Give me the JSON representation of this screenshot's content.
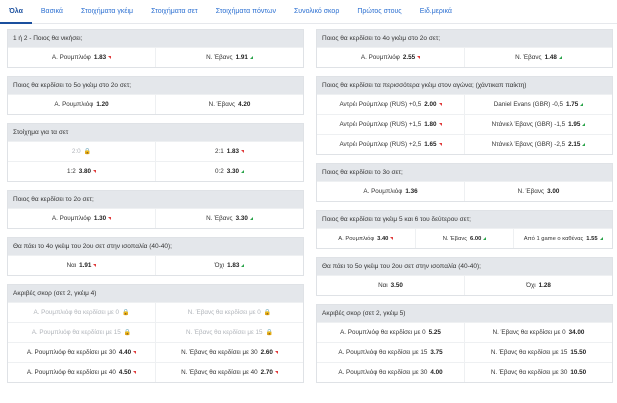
{
  "tabs": [
    "Όλα",
    "Βασικά",
    "Στοιχήματα γκέιμ",
    "Στοιχήματα σετ",
    "Στοιχήματα πόντων",
    "Συνολικό σκορ",
    "Πρώτος στους",
    "Ειδ.μερικά"
  ],
  "left": [
    {
      "title": "1 ή 2 - Ποιος θα νικήσει;",
      "rows": [
        [
          {
            "label": "Α. Ρουμπλιόφ",
            "odd": "1.83",
            "trend": "down"
          },
          {
            "label": "Ν. Έβανς",
            "odd": "1.91",
            "trend": "up"
          }
        ]
      ]
    },
    {
      "title": "Ποιος θα κερδίσει το 5ο γκέιμ στο 2ο σετ;",
      "rows": [
        [
          {
            "label": "Α. Ρουμπλιόφ",
            "odd": "1.20"
          },
          {
            "label": "Ν. Έβανς",
            "odd": "4.20"
          }
        ]
      ]
    },
    {
      "title": "Στοίχημα για τα σετ",
      "rows": [
        [
          {
            "label": "2:0",
            "locked": true
          },
          {
            "label": "2:1",
            "odd": "1.83",
            "trend": "down"
          }
        ],
        [
          {
            "label": "1:2",
            "odd": "3.80",
            "trend": "down"
          },
          {
            "label": "0:2",
            "odd": "3.30",
            "trend": "up"
          }
        ]
      ]
    },
    {
      "title": "Ποιος θα κερδίσει το 2ο σετ;",
      "rows": [
        [
          {
            "label": "Α. Ρουμπλιόφ",
            "odd": "1.30",
            "trend": "down"
          },
          {
            "label": "Ν. Έβανς",
            "odd": "3.30",
            "trend": "up"
          }
        ]
      ]
    },
    {
      "title": "Θα πάει το 4ο γκέιμ του 2ου σετ στην ισοπαλία (40-40);",
      "rows": [
        [
          {
            "label": "Ναι",
            "odd": "1.91",
            "trend": "down"
          },
          {
            "label": "Όχι",
            "odd": "1.83",
            "trend": "up"
          }
        ]
      ]
    },
    {
      "title": "Ακριβές σκορ (σετ 2, γκέιμ 4)",
      "rows": [
        [
          {
            "label": "Α. Ρουμπλιόφ θα κερδίσει με 0",
            "locked": true
          },
          {
            "label": "Ν. Έβανς θα κερδίσει με 0",
            "locked": true
          }
        ],
        [
          {
            "label": "Α. Ρουμπλιόφ θα κερδίσει με 15",
            "locked": true
          },
          {
            "label": "Ν. Έβανς θα κερδίσει με 15",
            "locked": true
          }
        ],
        [
          {
            "label": "Α. Ρουμπλιόφ θα κερδίσει με 30",
            "odd": "4.40",
            "trend": "down"
          },
          {
            "label": "Ν. Έβανς θα κερδίσει με 30",
            "odd": "2.60",
            "trend": "down"
          }
        ],
        [
          {
            "label": "Α. Ρουμπλιόφ θα κερδίσει με 40",
            "odd": "4.50",
            "trend": "down"
          },
          {
            "label": "Ν. Έβανς θα κερδίσει με 40",
            "odd": "2.70",
            "trend": "down"
          }
        ]
      ]
    }
  ],
  "right": [
    {
      "title": "Ποιος θα κερδίσει το 4ο γκέιμ στο 2ο σετ;",
      "rows": [
        [
          {
            "label": "Α. Ρουμπλιόφ",
            "odd": "2.55",
            "trend": "down"
          },
          {
            "label": "Ν. Έβανς",
            "odd": "1.48",
            "trend": "up"
          }
        ]
      ]
    },
    {
      "title": "Ποιος θα κερδίσει τα περισσότερα γκέιμ στον αγώνα; (χάντικαπ παίκτη)",
      "rows": [
        [
          {
            "label": "Αντρέι Ρούμπλεφ (RUS) +0,5",
            "odd": "2.00",
            "trend": "down"
          },
          {
            "label": "Daniel Evans (GBR) -0,5",
            "odd": "1.75",
            "trend": "up"
          }
        ],
        [
          {
            "label": "Αντρέι Ρούμπλεφ (RUS) +1,5",
            "odd": "1.80",
            "trend": "down"
          },
          {
            "label": "Ντάνιελ Έβανς (GBR) -1,5",
            "odd": "1.95",
            "trend": "up"
          }
        ],
        [
          {
            "label": "Αντρέι Ρούμπλεφ (RUS) +2,5",
            "odd": "1.65",
            "trend": "down"
          },
          {
            "label": "Ντάνιελ Έβανς (GBR) -2,5",
            "odd": "2.15",
            "trend": "up"
          }
        ]
      ]
    },
    {
      "title": "Ποιος θα κερδίσει το 3ο σετ;",
      "rows": [
        [
          {
            "label": "Α. Ρουμπλιόφ",
            "odd": "1.36"
          },
          {
            "label": "Ν. Έβανς",
            "odd": "3.00"
          }
        ]
      ]
    },
    {
      "title": "Ποιος θα κερδίσει τα γκέιμ 5 και 6 του δεύτερου σετ;",
      "rows": [
        [
          {
            "label": "Α. Ρουμπλιόφ",
            "odd": "3.40",
            "trend": "down"
          },
          {
            "label": "Ν. Έβανς",
            "odd": "6.00",
            "trend": "up"
          },
          {
            "label": "Από 1 game ο καθένας",
            "odd": "1.55",
            "trend": "up"
          }
        ]
      ]
    },
    {
      "title": "Θα πάει το 5ο γκέιμ του 2ου σετ στην ισοπαλία (40-40);",
      "rows": [
        [
          {
            "label": "Ναι",
            "odd": "3.50"
          },
          {
            "label": "Όχι",
            "odd": "1.28"
          }
        ]
      ]
    },
    {
      "title": "Ακριβές σκορ (σετ 2, γκέιμ 5)",
      "rows": [
        [
          {
            "label": "Α. Ρουμπλιόφ θα κερδίσει με 0",
            "odd": "5.25"
          },
          {
            "label": "Ν. Έβανς θα κερδίσει με 0",
            "odd": "34.00"
          }
        ],
        [
          {
            "label": "Α. Ρουμπλιόφ θα κερδίσει με 15",
            "odd": "3.75"
          },
          {
            "label": "Ν. Έβανς θα κερδίσει με 15",
            "odd": "15.50"
          }
        ],
        [
          {
            "label": "Α. Ρουμπλιόφ θα κερδίσει με 30",
            "odd": "4.00"
          },
          {
            "label": "Ν. Έβανς θα κερδίσει με 30",
            "odd": "10.50"
          }
        ]
      ]
    }
  ],
  "colors": {
    "accent": "#2b6fd1",
    "header_bg": "#e4e7eb",
    "trend_up": "#2aa44a",
    "trend_down": "#e03a3a"
  },
  "icons": {
    "locked": "lock-icon",
    "trend_up": "arrow-up-icon",
    "trend_down": "arrow-down-icon"
  }
}
